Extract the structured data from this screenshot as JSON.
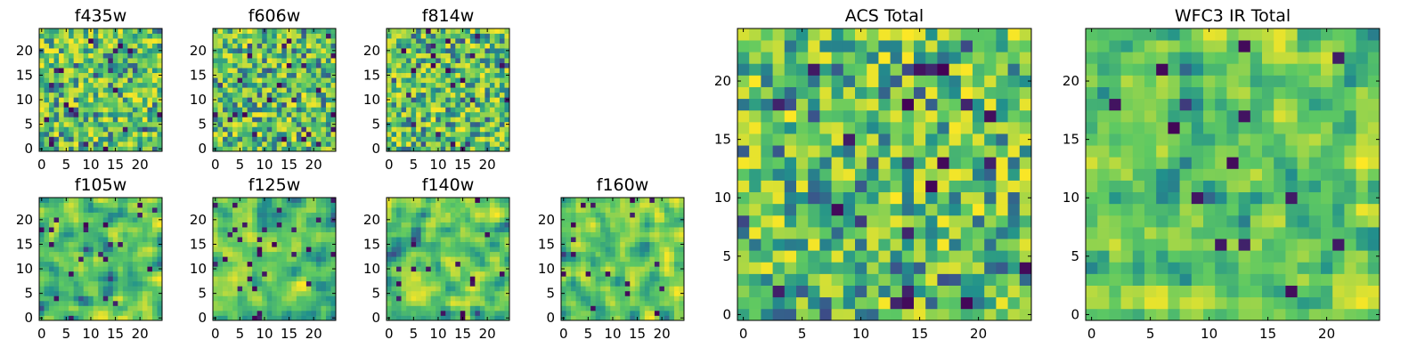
{
  "figure": {
    "colormap": "viridis",
    "colormap_colors": [
      "#440154",
      "#3b528b",
      "#21918c",
      "#5ec962",
      "#fde725"
    ],
    "frame_color": "#000000",
    "background": "#ffffff"
  },
  "chart_data": [
    {
      "type": "heatmap",
      "title": "f435w",
      "grid_size": [
        25,
        25
      ],
      "origin": "lower",
      "xticks": [
        0,
        5,
        10,
        15,
        20
      ],
      "yticks": [
        0,
        5,
        10,
        15,
        20
      ],
      "xlim": [
        -0.5,
        24.5
      ],
      "ylim": [
        -0.5,
        24.5
      ],
      "pattern": "uncorrelated pixel noise, mostly green-yellow with scattered dark purple pixels",
      "seed": 11
    },
    {
      "type": "heatmap",
      "title": "f606w",
      "grid_size": [
        25,
        25
      ],
      "origin": "lower",
      "xticks": [
        0,
        5,
        10,
        15,
        20
      ],
      "yticks": [
        0,
        5,
        10,
        15,
        20
      ],
      "xlim": [
        -0.5,
        24.5
      ],
      "ylim": [
        -0.5,
        24.5
      ],
      "pattern": "uncorrelated pixel noise, mostly green-yellow with scattered dark purple pixels",
      "seed": 23
    },
    {
      "type": "heatmap",
      "title": "f814w",
      "grid_size": [
        25,
        25
      ],
      "origin": "lower",
      "xticks": [
        0,
        5,
        10,
        15,
        20
      ],
      "yticks": [
        0,
        5,
        10,
        15,
        20
      ],
      "xlim": [
        -0.5,
        24.5
      ],
      "ylim": [
        -0.5,
        24.5
      ],
      "pattern": "uncorrelated pixel noise, mostly green-yellow with scattered dark purple pixels",
      "seed": 37
    },
    {
      "type": "heatmap",
      "title": "f105w",
      "grid_size": [
        25,
        25
      ],
      "origin": "lower",
      "xticks": [
        0,
        5,
        10,
        15,
        20
      ],
      "yticks": [
        0,
        5,
        10,
        15,
        20
      ],
      "xlim": [
        -0.5,
        24.5
      ],
      "ylim": [
        -0.5,
        24.5
      ],
      "pattern": "spatially correlated blotchy noise, green-yellow with dark blue-purple patches",
      "seed": 41
    },
    {
      "type": "heatmap",
      "title": "f125w",
      "grid_size": [
        25,
        25
      ],
      "origin": "lower",
      "xticks": [
        0,
        5,
        10,
        15,
        20
      ],
      "yticks": [
        0,
        5,
        10,
        15,
        20
      ],
      "xlim": [
        -0.5,
        24.5
      ],
      "ylim": [
        -0.5,
        24.5
      ],
      "pattern": "spatially correlated blotchy noise, green-yellow with dark blue-purple patches",
      "seed": 53
    },
    {
      "type": "heatmap",
      "title": "f140w",
      "grid_size": [
        25,
        25
      ],
      "origin": "lower",
      "xticks": [
        0,
        5,
        10,
        15,
        20
      ],
      "yticks": [
        0,
        5,
        10,
        15,
        20
      ],
      "xlim": [
        -0.5,
        24.5
      ],
      "ylim": [
        -0.5,
        24.5
      ],
      "pattern": "spatially correlated blotchy noise, green-yellow with dark blue-purple patches",
      "seed": 67
    },
    {
      "type": "heatmap",
      "title": "f160w",
      "grid_size": [
        25,
        25
      ],
      "origin": "lower",
      "xticks": [
        0,
        5,
        10,
        15,
        20
      ],
      "yticks": [
        0,
        5,
        10,
        15,
        20
      ],
      "xlim": [
        -0.5,
        24.5
      ],
      "ylim": [
        -0.5,
        24.5
      ],
      "pattern": "spatially correlated blotchy noise, green-yellow with dark blue-purple patches",
      "seed": 79
    },
    {
      "type": "heatmap",
      "title": "ACS Total",
      "grid_size": [
        25,
        25
      ],
      "origin": "lower",
      "xticks": [
        0,
        5,
        10,
        15,
        20
      ],
      "yticks": [
        0,
        5,
        10,
        15,
        20
      ],
      "xlim": [
        -0.5,
        24.5
      ],
      "ylim": [
        -0.5,
        24.5
      ],
      "pattern": "pixel noise, mostly green-yellow, a few dark purple pixels",
      "seed": 91
    },
    {
      "type": "heatmap",
      "title": "WFC3 IR Total",
      "grid_size": [
        25,
        25
      ],
      "origin": "lower",
      "xticks": [
        0,
        5,
        10,
        15,
        20
      ],
      "yticks": [
        0,
        5,
        10,
        15,
        20
      ],
      "xlim": [
        -0.5,
        24.5
      ],
      "ylim": [
        -0.5,
        24.5
      ],
      "pattern": "smoother correlated noise, green-yellow with a few dark purple spots",
      "seed": 103
    }
  ]
}
